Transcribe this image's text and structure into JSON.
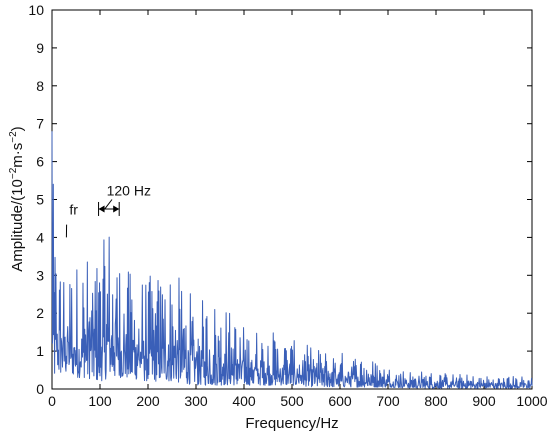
{
  "chart_data": {
    "type": "line",
    "title": "",
    "xlabel": "Frequency/Hz",
    "ylabel": "Amplitude/(10",
    "ylabel_sup1": "−2",
    "ylabel_mid": "m·s",
    "ylabel_sup2": "−2",
    "ylabel_end": ")",
    "xlim": [
      0,
      1000
    ],
    "ylim": [
      0,
      10
    ],
    "x_ticks": [
      "0",
      "100",
      "200",
      "300",
      "400",
      "500",
      "600",
      "700",
      "800",
      "900",
      "1000"
    ],
    "y_ticks": [
      "0",
      "1",
      "2",
      "3",
      "4",
      "5",
      "6",
      "7",
      "8",
      "9",
      "10"
    ],
    "grid": false,
    "series_color": "#3a5fb8",
    "envelope": {
      "x": [
        0,
        5,
        10,
        20,
        30,
        50,
        70,
        100,
        120,
        150,
        200,
        250,
        300,
        350,
        400,
        450,
        500,
        550,
        600,
        650,
        700,
        750,
        800,
        850,
        900,
        950,
        1000
      ],
      "y_min": [
        0.3,
        0.3,
        0.4,
        0.4,
        0.4,
        0.3,
        0.3,
        0.2,
        0.3,
        0.3,
        0.2,
        0.2,
        0.1,
        0.1,
        0.1,
        0.1,
        0.1,
        0.05,
        0.05,
        0.05,
        0.05,
        0.02,
        0.02,
        0.02,
        0.02,
        0.02,
        0.02
      ],
      "y_max": [
        6.8,
        4.3,
        3.8,
        3.5,
        3.3,
        3.4,
        3.6,
        3.5,
        4.6,
        3.2,
        3.0,
        3.2,
        2.4,
        2.4,
        1.7,
        1.6,
        1.3,
        1.1,
        1.0,
        0.9,
        0.6,
        0.5,
        0.45,
        0.4,
        0.35,
        0.35,
        0.35
      ]
    },
    "annotations": [
      {
        "text": "fr",
        "x": 45,
        "y": 4.6,
        "arrow_to": [
          30,
          4.0
        ]
      },
      {
        "text": "120 Hz",
        "x": 160,
        "y": 5.1,
        "bracket": [
          97,
          140
        ],
        "bracket_y": 4.75,
        "arrow_from": [
          125,
          5.0
        ],
        "arrow_to": [
          110,
          4.75
        ]
      }
    ]
  }
}
